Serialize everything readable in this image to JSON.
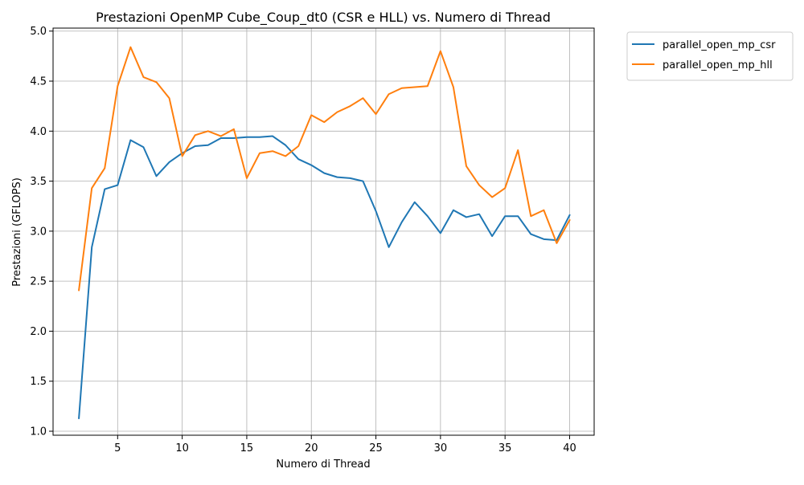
{
  "chart_data": {
    "type": "line",
    "title": "Prestazioni OpenMP Cube_Coup_dt0 (CSR e HLL) vs. Numero di Thread",
    "xlabel": "Numero di Thread",
    "ylabel": "Prestazioni (GFLOPS)",
    "xlim": [
      0,
      41.9
    ],
    "ylim": [
      0.96,
      5.03
    ],
    "xticks": [
      5,
      10,
      15,
      20,
      25,
      30,
      35,
      40
    ],
    "yticks": [
      1.0,
      1.5,
      2.0,
      2.5,
      3.0,
      3.5,
      4.0,
      4.5,
      5.0
    ],
    "xtick_labels": [
      "5",
      "10",
      "15",
      "20",
      "25",
      "30",
      "35",
      "40"
    ],
    "ytick_labels": [
      "1.0",
      "1.5",
      "2.0",
      "2.5",
      "3.0",
      "3.5",
      "4.0",
      "4.5",
      "5.0"
    ],
    "grid": true,
    "legend_position": "outside-top-right",
    "x": [
      2,
      3,
      4,
      5,
      6,
      7,
      8,
      9,
      10,
      11,
      12,
      13,
      14,
      15,
      16,
      17,
      18,
      19,
      20,
      21,
      22,
      23,
      24,
      25,
      26,
      27,
      28,
      29,
      30,
      31,
      32,
      33,
      34,
      35,
      36,
      37,
      38,
      39,
      40
    ],
    "series": [
      {
        "name": "parallel_open_mp_csr",
        "color": "#1f77b4",
        "values": [
          1.13,
          2.84,
          3.42,
          3.46,
          3.91,
          3.84,
          3.55,
          3.69,
          3.78,
          3.85,
          3.86,
          3.93,
          3.93,
          3.94,
          3.94,
          3.95,
          3.86,
          3.72,
          3.66,
          3.58,
          3.54,
          3.53,
          3.5,
          3.2,
          2.84,
          3.09,
          3.29,
          3.15,
          2.98,
          3.21,
          3.14,
          3.17,
          2.95,
          3.15,
          3.15,
          2.97,
          2.92,
          2.91,
          3.16
        ]
      },
      {
        "name": "parallel_open_mp_hll",
        "color": "#ff7f0e",
        "values": [
          2.41,
          3.43,
          3.63,
          4.45,
          4.84,
          4.54,
          4.49,
          4.33,
          3.75,
          3.96,
          4.0,
          3.95,
          4.02,
          3.53,
          3.78,
          3.8,
          3.75,
          3.85,
          4.16,
          4.09,
          4.19,
          4.25,
          4.33,
          4.17,
          4.37,
          4.43,
          4.44,
          4.45,
          4.8,
          4.44,
          3.65,
          3.46,
          3.34,
          3.43,
          3.81,
          3.15,
          3.21,
          2.88,
          3.11
        ]
      }
    ]
  }
}
